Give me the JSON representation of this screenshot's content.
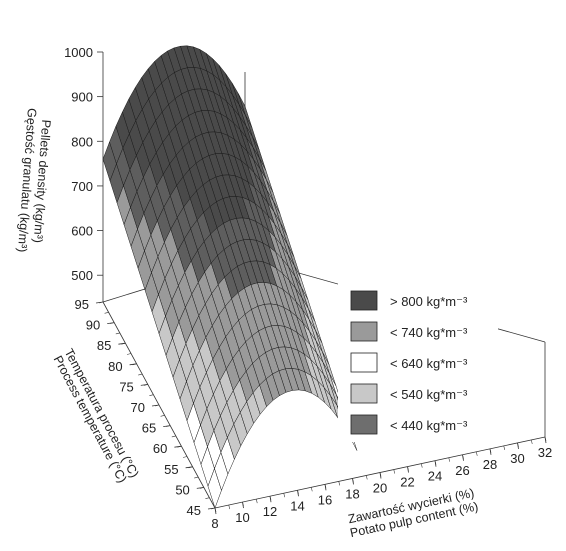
{
  "chart_data": {
    "type": "surface3d",
    "z_axis": {
      "label_pl": "Gęstość granulatu (kg/m³)",
      "label_en": "Pellets density (kg/m³)",
      "ticks": [
        500,
        600,
        700,
        800,
        900,
        1000
      ],
      "range": [
        440,
        1000
      ]
    },
    "y_axis": {
      "label_pl": "Temperatura procesu (°C)",
      "label_en": "Process temperature (°C)",
      "ticks": [
        45,
        50,
        55,
        60,
        65,
        70,
        75,
        80,
        85,
        90,
        95
      ],
      "range": [
        45,
        95
      ]
    },
    "x_axis": {
      "label_pl": "Zawartość wycierki (%)",
      "label_en": "Potato pulp content (%)",
      "ticks": [
        8,
        10,
        12,
        14,
        16,
        18,
        20,
        22,
        24,
        26,
        28,
        30,
        32
      ],
      "range": [
        8,
        32
      ]
    },
    "legend": {
      "placement": "lower-right",
      "entries": [
        {
          "label": "> 800 kg*m⁻³",
          "color": "#4a4a4a"
        },
        {
          "label": "< 740 kg*m⁻³",
          "color": "#9a9a9a"
        },
        {
          "label": "< 640 kg*m⁻³",
          "color": "#ffffff"
        },
        {
          "label": "< 540 kg*m⁻³",
          "color": "#c8c8c8"
        },
        {
          "label": "< 440 kg*m⁻³",
          "color": "#6e6e6e"
        }
      ]
    },
    "surface_samples": [
      {
        "x": 8,
        "y": 95,
        "z": 760
      },
      {
        "x": 20,
        "y": 95,
        "z": 960
      },
      {
        "x": 32,
        "y": 95,
        "z": 780
      },
      {
        "x": 8,
        "y": 45,
        "z": 440
      },
      {
        "x": 20,
        "y": 45,
        "z": 650
      },
      {
        "x": 32,
        "y": 45,
        "z": 470
      }
    ]
  }
}
